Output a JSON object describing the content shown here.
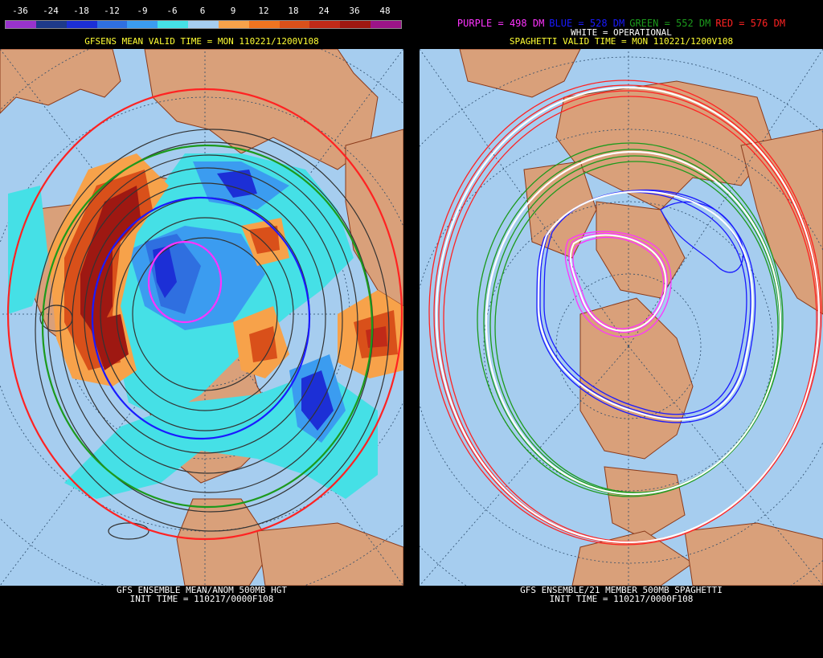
{
  "left_panel": {
    "scale_labels": [
      "-36",
      "-24",
      "-18",
      "-12",
      "-9",
      "-6",
      "6",
      "9",
      "12",
      "18",
      "24",
      "36",
      "48"
    ],
    "scale_colors": [
      "#9933cc",
      "#1e3a8a",
      "#1c2fd6",
      "#2f6fe0",
      "#3b9cf0",
      "#45e0e6",
      "#a6cdef",
      "#f7a24a",
      "#ef7420",
      "#d9501a",
      "#c02a18",
      "#9e1812",
      "#9b1488"
    ],
    "valid_time": "GFSENS MEAN VALID TIME = MON 110221/1200V108",
    "bottom_line1": "GFS ENSEMBLE MEAN/ANOM 500MB HGT",
    "bottom_line2": "INIT TIME = 110217/0000F108"
  },
  "right_panel": {
    "key": [
      {
        "text": "PURPLE = 498 DM",
        "color": "#ff33ff"
      },
      {
        "text": "BLUE = 528 DM",
        "color": "#1a1aff"
      },
      {
        "text": "GREEN = 552 DM",
        "color": "#1c9a1c"
      },
      {
        "text": "RED = 576 DM",
        "color": "#ff2222"
      }
    ],
    "white_label": "WHITE = OPERATIONAL",
    "valid_time": "SPAGHETTI VALID TIME = MON 110221/1200V108",
    "bottom_line1": "GFS ENSEMBLE/21 MEMBER 500MB SPAGHETTI",
    "bottom_line2": "INIT TIME = 110217/0000F108"
  },
  "colors": {
    "ocean": "#a6cdef",
    "land": "#d9a07a",
    "border": "#8b3a1a"
  }
}
